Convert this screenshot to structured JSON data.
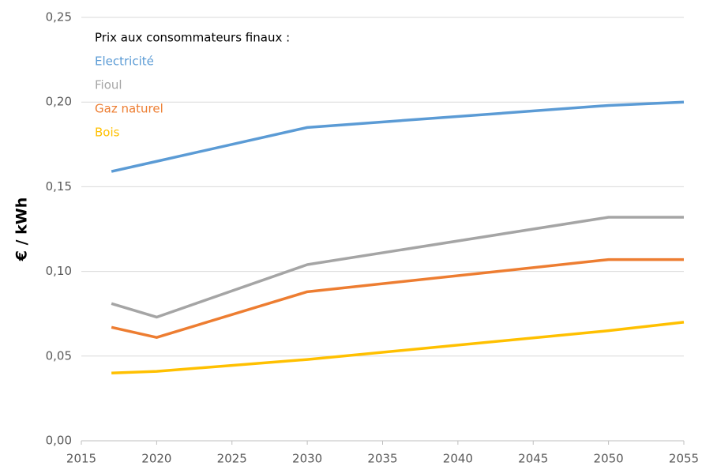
{
  "chart_data": {
    "type": "line",
    "y_label": "€ / kWh",
    "legend_title": "Prix aux consommateurs finaux :",
    "legend_position": "upper left",
    "grid": true,
    "x": [
      2017,
      2020,
      2030,
      2050,
      2055
    ],
    "xlim": [
      2015,
      2055
    ],
    "xticks": [
      2015,
      2020,
      2025,
      2030,
      2035,
      2040,
      2045,
      2050,
      2055
    ],
    "ylim": [
      0,
      0.25
    ],
    "yticks": [
      {
        "value": 0,
        "label": "0,00"
      },
      {
        "value": 0.05,
        "label": "0,05"
      },
      {
        "value": 0.1,
        "label": "0,10"
      },
      {
        "value": 0.15,
        "label": "0,15"
      },
      {
        "value": 0.2,
        "label": "0,20"
      },
      {
        "value": 0.25,
        "label": "0,25"
      }
    ],
    "series": [
      {
        "name": "Electricité",
        "color": "#5b9bd5",
        "values": [
          0.159,
          0.165,
          0.185,
          0.198,
          0.2
        ]
      },
      {
        "name": "Fioul",
        "color": "#a5a5a5",
        "values": [
          0.081,
          0.073,
          0.104,
          0.132,
          0.132
        ]
      },
      {
        "name": "Gaz naturel",
        "color": "#ed7d31",
        "values": [
          0.067,
          0.061,
          0.088,
          0.107,
          0.107
        ]
      },
      {
        "name": "Bois",
        "color": "#ffc000",
        "values": [
          0.04,
          0.041,
          0.048,
          0.065,
          0.07
        ]
      }
    ]
  }
}
